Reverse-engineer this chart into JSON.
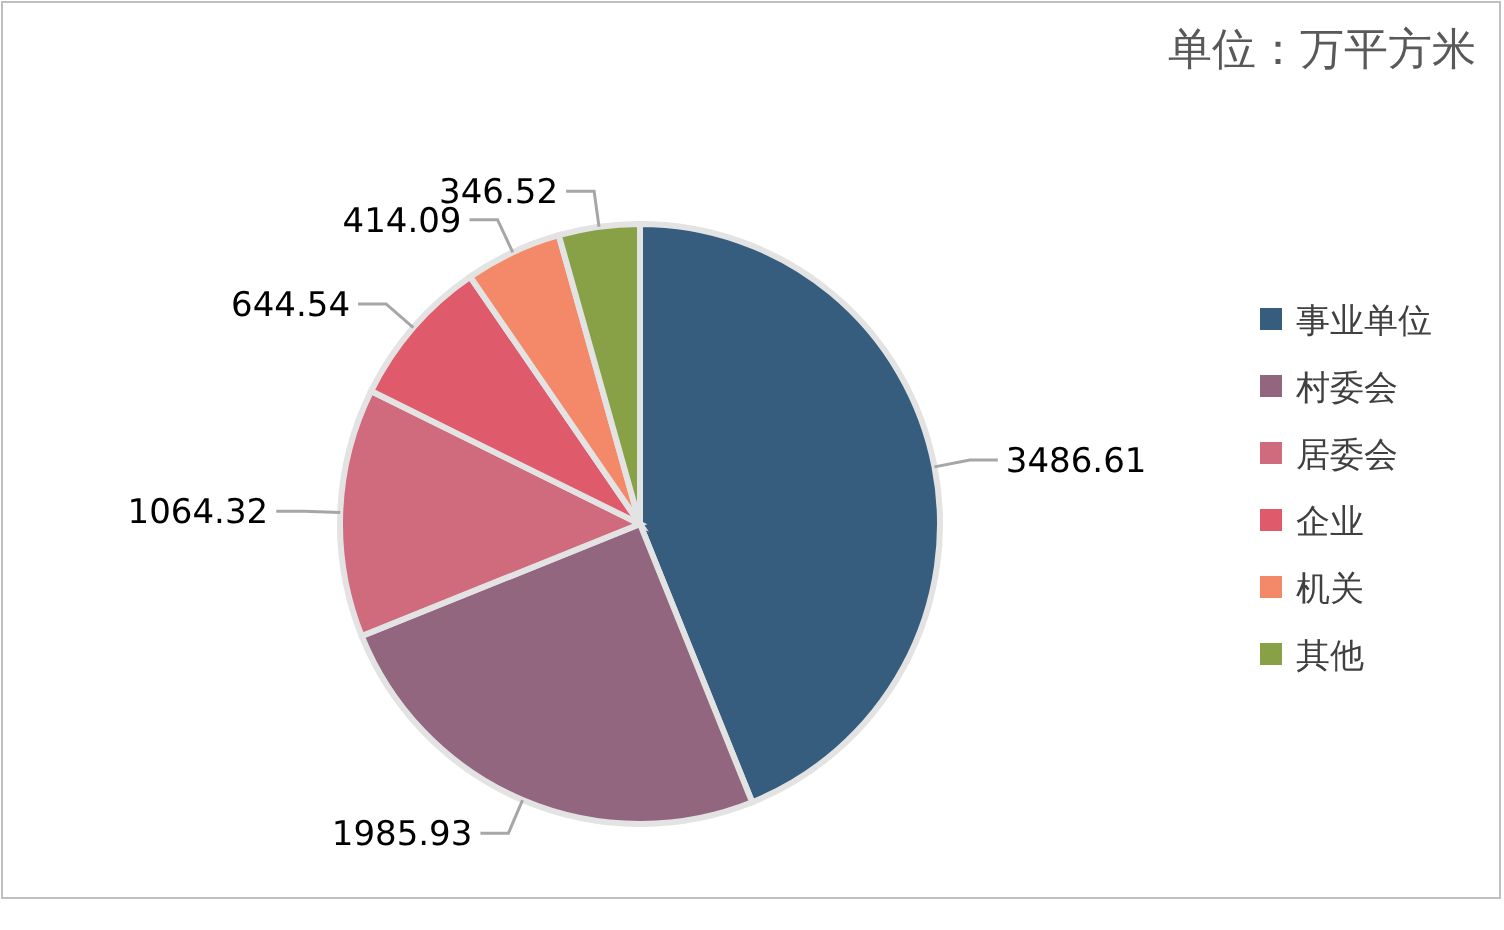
{
  "chart_data": {
    "type": "pie",
    "title": "单位：万平方米",
    "categories": [
      "事业单位",
      "村委会",
      "居委会",
      "企业",
      "机关",
      "其他"
    ],
    "values": [
      3486.61,
      1985.93,
      1064.32,
      644.54,
      414.09,
      346.52
    ],
    "colors": [
      "#365c7e",
      "#93667f",
      "#d06b7e",
      "#df5a6a",
      "#f4896a",
      "#88a046"
    ],
    "data_labels": true,
    "legend": "right"
  }
}
